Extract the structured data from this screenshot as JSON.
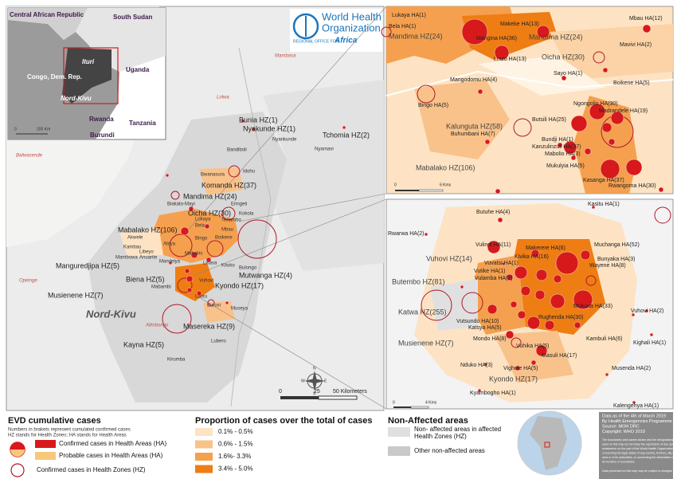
{
  "who": {
    "title": "World Health",
    "title2": "Organization",
    "region": "REGIONAL OFFICE FOR",
    "region2": "Africa"
  },
  "inset_overview": {
    "labels": [
      "Central African Republic",
      "South Sudan",
      "Ituri",
      "Uganda",
      "Congo, Dem. Rep.",
      "Nord-Kivu",
      "Rwanda",
      "Tanzania",
      "Burundi"
    ],
    "scale": [
      "0",
      "200 Km"
    ]
  },
  "main_map": {
    "zones": [
      "Bunia HZ(1)",
      "Nyakunde HZ(1)",
      "Tchomia HZ(2)",
      "Komanda HZ(37)",
      "Mandima HZ(24)",
      "Oicha HZ(30)",
      "Mabalako HZ(106)",
      "Manguredjipa HZ(5)",
      "Biena HZ(5)",
      "Mutwanga HZ(4)",
      "Kyondo HZ(17)",
      "Musienene HZ(7)",
      "Masereka HZ(9)",
      "Kayna HZ(5)"
    ],
    "areas": [
      "Bandiboli",
      "Idohu",
      "Bwanasura",
      "Eringeti",
      "Biakato-Mayi",
      "Tenambo",
      "Kokola",
      "Lukaya",
      "Bela",
      "Akwele",
      "Kambau",
      "Libeyo",
      "Mambowa",
      "Anuarite",
      "Mandelya",
      "Bingo",
      "Boikene",
      "Mbau",
      "Abiya",
      "Mabakis",
      "Lisasa",
      "Kitoko",
      "Bulongo",
      "Vuhovi",
      "Mabambi",
      "Luotu",
      "Museya",
      "Burusi",
      "Kirumba",
      "Lubero",
      "Nyankunde",
      "Nyarnavi"
    ],
    "places": [
      "Opienge",
      "Alimbongo",
      "Bafwasende",
      "Lolwa",
      "Mambasa"
    ],
    "region": "Nord-Kivu",
    "compass": [
      "N",
      "E",
      "S",
      "W"
    ],
    "scale": [
      "0",
      "25",
      "50 Kilometers"
    ]
  },
  "inset_north": {
    "labels": [
      "Lukaya HA(1)",
      "Bela HA(1)",
      "Mandima HZ(24)",
      "Makeke HA(13)",
      "Mbau HA(12)",
      "Mangina HA(36)",
      "Mandima HZ(24)",
      "Mavivi HA(2)",
      "Linzo HA(13)",
      "Oicha HZ(30)",
      "Sayo HA(1)",
      "Mangodomu HA(4)",
      "Boikene HA(5)",
      "Bingo HA(5)",
      "Ngongolio HA(30)",
      "Madrandele HA(19)",
      "Butsili HA(25)",
      "Kalunguta HZ(58)",
      "Buhumbani HA(7)",
      "Bundji HA(1)",
      "Kanzulinzuli HA(37)",
      "Mabolio HA(3)",
      "Mabalako HZ(106)",
      "Mukulyia HA(5)",
      "Kasanga HA(37)",
      "Rwangoma HA(30)"
    ],
    "scale": [
      "0",
      "6 Kms"
    ]
  },
  "inset_south": {
    "labels": [
      "Kasitu HA(1)",
      "Butuhe HA(4)",
      "Rwarwa HA(2)",
      "Vulindi HA(11)",
      "Makerere HA(6)",
      "Muchanga HA(52)",
      "Vuhovi HZ(14)",
      "Kivika HA(16)",
      "Bunyaka HA(3)",
      "Vuvatsi HA(1)",
      "Wayene HA(8)",
      "Vutike HA(1)",
      "Vulamba HA(2)",
      "Butembo HZ(81)",
      "Katwa HZ(255)",
      "Mukuna HA(33)",
      "Vuhovi HA(2)",
      "Vutsundo HA(10)",
      "Katsya HA(5)",
      "Rughenda HA(30)",
      "Mondo HA(8)",
      "Kambuli HA(6)",
      "Kighali HA(1)",
      "Musienene HZ(7)",
      "Vuhika HA(5)",
      "Masuli HA(17)",
      "Musenda HA(2)",
      "Nduko HA(3)",
      "Vighole HA(5)",
      "Kyondo HZ(17)",
      "Kyambogho HA(1)",
      "Kalengehya HA(1)"
    ],
    "scale": [
      "0",
      "4 Kms"
    ]
  },
  "legend": {
    "title": "EVD cumulative cases",
    "notes": [
      "Numbers in brakets represent cumulated confirmed cases",
      "HZ stands for Health Zones; HA stands for Health Areas"
    ],
    "items": [
      "Confirmed cases in Health Areas (HA)",
      "Probable cases in Health Areas (HA)",
      "Confirmed cases in Health Zones (HZ)"
    ],
    "proportion_title": "Proportion of cases over the total of cases",
    "classes": [
      {
        "label": "0.1% - 0.5%",
        "color": "#fde3c3"
      },
      {
        "label": "0.6% - 1.5%",
        "color": "#f9c28a"
      },
      {
        "label": "1.6%- 3.3%",
        "color": "#f5a04f"
      },
      {
        "label": "3.4% - 5.0%",
        "color": "#ee7d14"
      }
    ],
    "non_affected_title": "Non-Affected areas",
    "non_affected": [
      "Non- affected areas in affected",
      "Health Zones (HZ)",
      "Other non-affected areas"
    ]
  },
  "info": {
    "lines": [
      "Data as of the 4th of March 2019",
      "By Health Emergencies Programme",
      "Source: MOH DRC",
      "Copyright: WHO 2019"
    ],
    "disclaimer": [
      "The boundaries and names shown and the designations",
      "used on this map do not imply the expression of any opinion",
      "whatsoever on the part of the World Health Organization",
      "concerning the legal status of any country, territory, city or",
      "area or of its authorities, or concerning the delimitation of",
      "its frontiers or boundaries.",
      "Data presented on this map may be subject to changes"
    ]
  }
}
